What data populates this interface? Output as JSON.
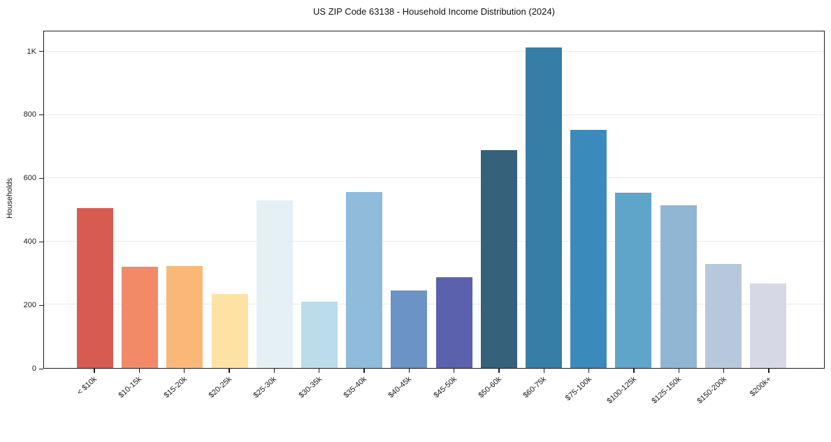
{
  "chart_data": {
    "type": "bar",
    "title": "US ZIP Code 63138 - Household Income Distribution (2024)",
    "xlabel": "",
    "ylabel": "Households",
    "categories": [
      "< $10k",
      "$10-15k",
      "$15-20k",
      "$20-25k",
      "$25-30k",
      "$30-35k",
      "$35-40k",
      "$40-45k",
      "$45-50k",
      "$50-60k",
      "$60-75k",
      "$75-100k",
      "$100-125k",
      "$125-150k",
      "$150-200k",
      "$200k+"
    ],
    "values": [
      505,
      320,
      323,
      235,
      530,
      210,
      556,
      246,
      288,
      690,
      1015,
      753,
      554,
      514,
      330,
      267
    ],
    "bar_colors": [
      "#d85b52",
      "#f28a68",
      "#fab878",
      "#fde2a3",
      "#e4f0f6",
      "#badceb",
      "#8ebcda",
      "#6b93c5",
      "#5c61ae",
      "#35617a",
      "#377ea7",
      "#3a8bbc",
      "#5fa5c9",
      "#90b6d4",
      "#b8c8dc",
      "#d6d8e6"
    ],
    "ylim": [
      0,
      1065
    ],
    "yticks": [
      {
        "value": 0,
        "label": "0"
      },
      {
        "value": 200,
        "label": "200"
      },
      {
        "value": 400,
        "label": "400"
      },
      {
        "value": 600,
        "label": "600"
      },
      {
        "value": 800,
        "label": "800"
      },
      {
        "value": 1000,
        "label": "1K"
      }
    ],
    "grid": "horizontal",
    "legend": "none",
    "background_color": "#ffffff",
    "spine_color": "#1c1c1c",
    "gridline_color": "#e9e9e9"
  }
}
